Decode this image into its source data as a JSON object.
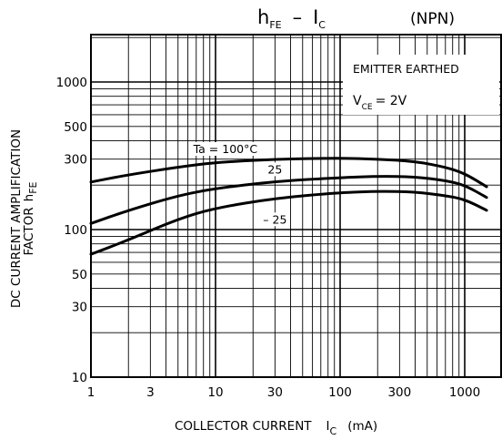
{
  "title": {
    "main": "h",
    "main_sub": "FE",
    "dash": "–",
    "ic": "I",
    "ic_sub": "C",
    "npn": "(NPN)"
  },
  "ylabel": {
    "line1": "DC CURRENT AMPLIFICATION",
    "line2": "FACTOR",
    "hfe": "h",
    "hfe_sub": "FE"
  },
  "xlabel": {
    "text": "COLLECTOR CURRENT",
    "ic": "I",
    "ic_sub": "C",
    "unit": "(mA)"
  },
  "annotations": {
    "emitter": "EMITTER EARTHED",
    "vce_v": "V",
    "vce_sub": "CE",
    "vce_val": "= 2V"
  },
  "chart_data": {
    "type": "line",
    "title": "hFE – IC (NPN)",
    "xlabel": "COLLECTOR CURRENT IC (mA)",
    "ylabel": "DC CURRENT AMPLIFICATION FACTOR hFE",
    "x_scale": "log",
    "y_scale": "log",
    "xlim": [
      1,
      2000
    ],
    "ylim": [
      10,
      2000
    ],
    "grid": true,
    "x_ticks": [
      {
        "value": 1,
        "label": "1"
      },
      {
        "value": 3,
        "label": "3"
      },
      {
        "value": 10,
        "label": "10"
      },
      {
        "value": 30,
        "label": "30"
      },
      {
        "value": 100,
        "label": "100"
      },
      {
        "value": 300,
        "label": "300"
      },
      {
        "value": 1000,
        "label": "1000"
      }
    ],
    "y_ticks": [
      {
        "value": 10,
        "label": "10"
      },
      {
        "value": 30,
        "label": "30"
      },
      {
        "value": 50,
        "label": "50"
      },
      {
        "value": 100,
        "label": "100"
      },
      {
        "value": 300,
        "label": "300"
      },
      {
        "value": 500,
        "label": "500"
      },
      {
        "value": 1000,
        "label": "1000"
      }
    ],
    "series": [
      {
        "name": "Ta = 100°C",
        "label_at": [
          12,
          330
        ],
        "points": [
          [
            1,
            210
          ],
          [
            2,
            235
          ],
          [
            5,
            265
          ],
          [
            10,
            285
          ],
          [
            30,
            300
          ],
          [
            100,
            305
          ],
          [
            200,
            300
          ],
          [
            400,
            290
          ],
          [
            700,
            265
          ],
          [
            1000,
            240
          ],
          [
            1500,
            195
          ]
        ]
      },
      {
        "name": "25",
        "label_at": [
          30,
          240
        ],
        "points": [
          [
            1,
            110
          ],
          [
            2,
            135
          ],
          [
            5,
            170
          ],
          [
            10,
            190
          ],
          [
            30,
            212
          ],
          [
            100,
            225
          ],
          [
            200,
            230
          ],
          [
            400,
            228
          ],
          [
            700,
            215
          ],
          [
            1000,
            200
          ],
          [
            1500,
            165
          ]
        ]
      },
      {
        "name": "– 25",
        "label_at": [
          30,
          110
        ],
        "points": [
          [
            1,
            68
          ],
          [
            2,
            85
          ],
          [
            5,
            118
          ],
          [
            10,
            140
          ],
          [
            30,
            163
          ],
          [
            100,
            178
          ],
          [
            200,
            182
          ],
          [
            400,
            180
          ],
          [
            700,
            170
          ],
          [
            1000,
            160
          ],
          [
            1500,
            135
          ]
        ]
      }
    ]
  }
}
